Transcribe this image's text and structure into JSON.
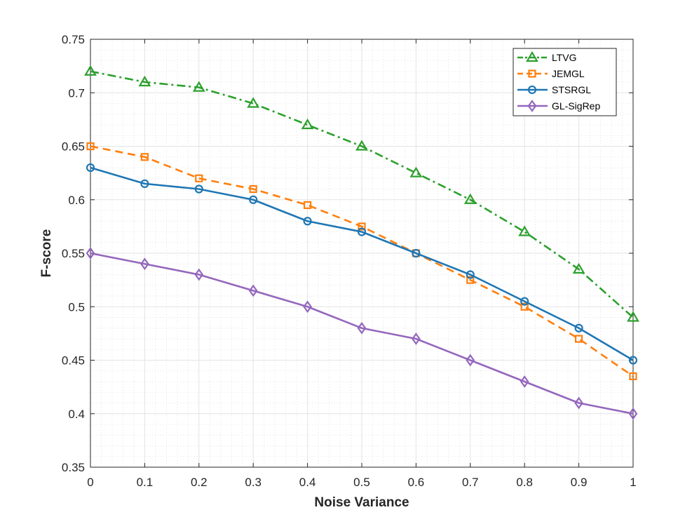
{
  "chart_data": {
    "type": "line",
    "title": "",
    "xlabel": "Noise Variance",
    "ylabel": "F-score",
    "xlim": [
      0,
      1
    ],
    "ylim": [
      0.35,
      0.75
    ],
    "xticks": [
      0,
      0.1,
      0.2,
      0.3,
      0.4,
      0.5,
      0.6,
      0.7,
      0.8,
      0.9,
      1
    ],
    "xtick_labels": [
      "0",
      "0.1",
      "0.2",
      "0.3",
      "0.4",
      "0.5",
      "0.6",
      "0.7",
      "0.8",
      "0.9",
      "1"
    ],
    "yticks": [
      0.35,
      0.4,
      0.45,
      0.5,
      0.55,
      0.6,
      0.65,
      0.7,
      0.75
    ],
    "ytick_labels": [
      "0.35",
      "0.4",
      "0.45",
      "0.5",
      "0.55",
      "0.6",
      "0.65",
      "0.7",
      "0.75"
    ],
    "grid": true,
    "minor_grid": true,
    "legend_position": "top-right",
    "x": [
      0,
      0.1,
      0.2,
      0.3,
      0.4,
      0.5,
      0.6,
      0.7,
      0.8,
      0.9,
      1
    ],
    "series": [
      {
        "name": "LTVG",
        "color": "#2ca02c",
        "line_style": "dash-dot",
        "marker": "triangle",
        "values": [
          0.72,
          0.71,
          0.705,
          0.69,
          0.67,
          0.65,
          0.625,
          0.6,
          0.57,
          0.535,
          0.49
        ]
      },
      {
        "name": "JEMGL",
        "color": "#ff7f0e",
        "line_style": "dashed",
        "marker": "square",
        "values": [
          0.65,
          0.64,
          0.62,
          0.61,
          0.595,
          0.575,
          0.55,
          0.525,
          0.5,
          0.47,
          0.435
        ]
      },
      {
        "name": "STSRGL",
        "color": "#1f77b4",
        "line_style": "solid",
        "marker": "circle",
        "values": [
          0.63,
          0.615,
          0.61,
          0.6,
          0.58,
          0.57,
          0.55,
          0.53,
          0.505,
          0.48,
          0.45
        ]
      },
      {
        "name": "GL-SigRep",
        "color": "#9467bd",
        "line_style": "solid",
        "marker": "diamond",
        "values": [
          0.55,
          0.54,
          0.53,
          0.515,
          0.5,
          0.48,
          0.47,
          0.45,
          0.43,
          0.41,
          0.4
        ]
      }
    ]
  }
}
